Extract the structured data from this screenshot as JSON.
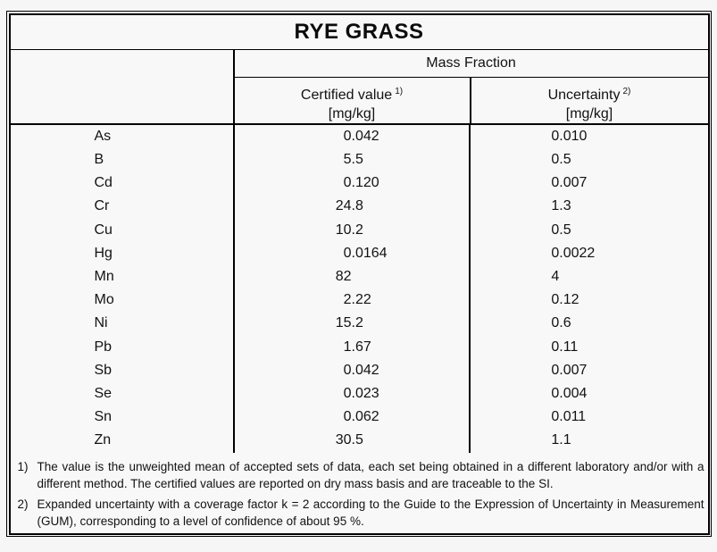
{
  "title": "RYE GRASS",
  "table": {
    "group_header": "Mass Fraction",
    "col_certified": {
      "label": "Certified value",
      "sup": "1)",
      "unit": "[mg/kg]"
    },
    "col_uncertainty": {
      "label": "Uncertainty",
      "sup": "2)",
      "unit": "[mg/kg]"
    },
    "rows": [
      {
        "element": "As",
        "certified": "0.042",
        "uncertainty": "0.010"
      },
      {
        "element": "B",
        "certified": "5.5",
        "uncertainty": "0.5"
      },
      {
        "element": "Cd",
        "certified": "0.120",
        "uncertainty": "0.007"
      },
      {
        "element": "Cr",
        "certified": "24.8",
        "uncertainty": "1.3"
      },
      {
        "element": "Cu",
        "certified": "10.2",
        "uncertainty": "0.5"
      },
      {
        "element": "Hg",
        "certified": "0.0164",
        "uncertainty": "0.0022"
      },
      {
        "element": "Mn",
        "certified": "82",
        "uncertainty": "4"
      },
      {
        "element": "Mo",
        "certified": "2.22",
        "uncertainty": "0.12"
      },
      {
        "element": "Ni",
        "certified": "15.2",
        "uncertainty": "0.6"
      },
      {
        "element": "Pb",
        "certified": "1.67",
        "uncertainty": "0.11"
      },
      {
        "element": "Sb",
        "certified": "0.042",
        "uncertainty": "0.007"
      },
      {
        "element": "Se",
        "certified": "0.023",
        "uncertainty": "0.004"
      },
      {
        "element": "Sn",
        "certified": "0.062",
        "uncertainty": "0.011"
      },
      {
        "element": "Zn",
        "certified": "30.5",
        "uncertainty": "1.1"
      }
    ]
  },
  "footnotes": [
    {
      "num": "1)",
      "text": "The value is the unweighted mean of accepted sets of data, each set being obtained in a different laboratory and/or with a different method. The certified values are reported on dry mass basis and are traceable to the SI."
    },
    {
      "num": "2)",
      "text": "Expanded uncertainty with a coverage factor k = 2 according to the Guide to the Expression of Uncertainty in Measurement (GUM), corresponding to a level of confidence of about 95 %."
    }
  ],
  "colors": {
    "background": "#f7f7f7",
    "border": "#000000",
    "text": "#121212"
  }
}
